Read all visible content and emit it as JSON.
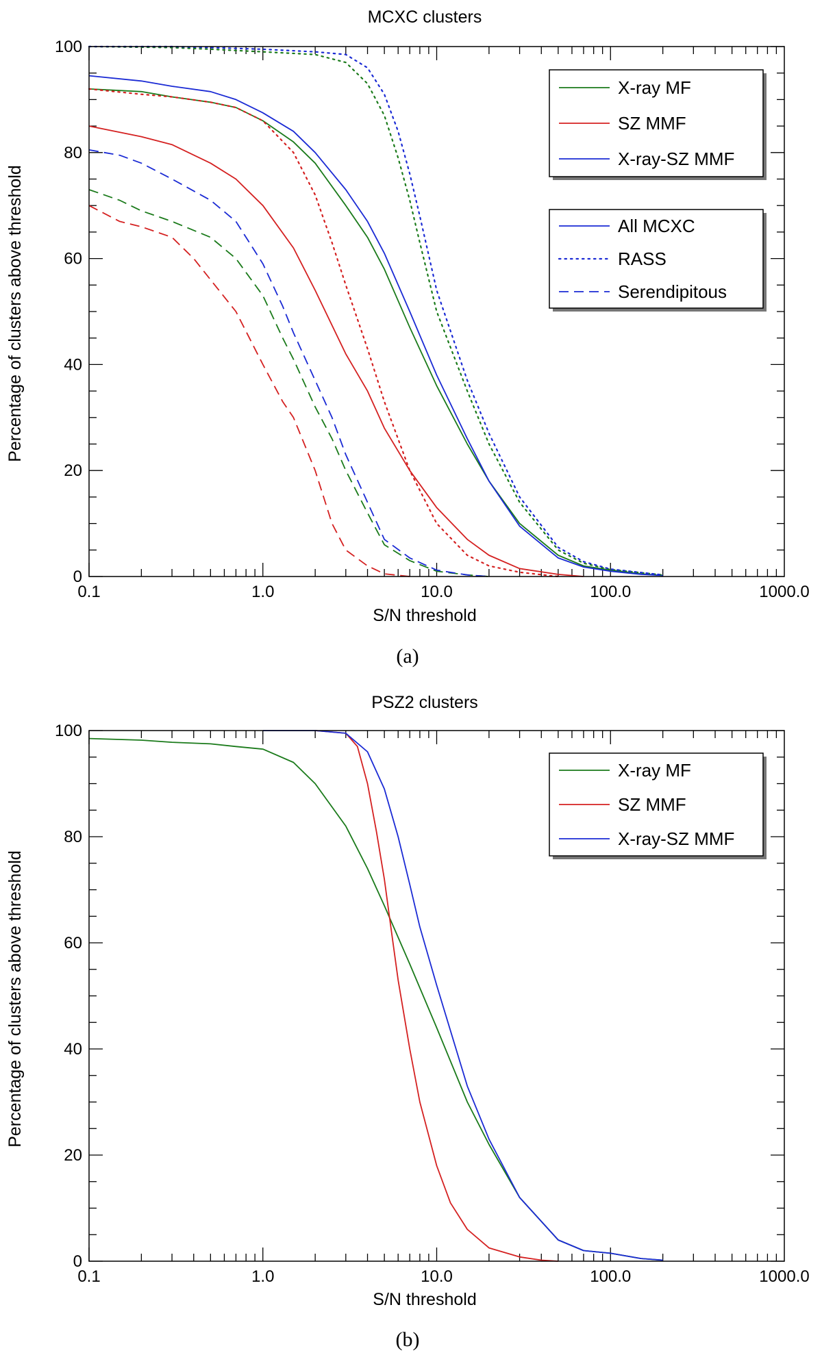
{
  "chart_data": [
    {
      "type": "line",
      "title": "MCXC clusters",
      "caption": "(a)",
      "xlabel": "S/N threshold",
      "ylabel": "Percentage of clusters above threshold",
      "xscale": "log",
      "xlim": [
        0.1,
        1000
      ],
      "ylim": [
        0,
        100
      ],
      "xticks": [
        {
          "v": 0.1,
          "label": "0.1"
        },
        {
          "v": 1,
          "label": "1.0"
        },
        {
          "v": 10,
          "label": "10.0"
        },
        {
          "v": 100,
          "label": "100.0"
        },
        {
          "v": 1000,
          "label": "1000.0"
        }
      ],
      "yticks": [
        0,
        20,
        40,
        60,
        80,
        100
      ],
      "legends": [
        {
          "position": "top-right",
          "entries": [
            {
              "label": "X-ray MF",
              "color": "#1a7a1a",
              "style": "solid"
            },
            {
              "label": "SZ MMF",
              "color": "#d42020",
              "style": "solid"
            },
            {
              "label": "X-ray-SZ MMF",
              "color": "#1a2ad4",
              "style": "solid"
            }
          ]
        },
        {
          "position": "upper-right",
          "entries": [
            {
              "label": "All MCXC",
              "color": "#1a2ad4",
              "style": "solid"
            },
            {
              "label": "RASS",
              "color": "#1a2ad4",
              "style": "dotted"
            },
            {
              "label": "Serendipitous",
              "color": "#1a2ad4",
              "style": "dashed"
            }
          ]
        }
      ],
      "series": [
        {
          "name": "X-ray MF / All MCXC",
          "color": "#1a7a1a",
          "style": "solid",
          "points": [
            [
              0.1,
              92
            ],
            [
              0.2,
              91.5
            ],
            [
              0.3,
              90.5
            ],
            [
              0.5,
              89.5
            ],
            [
              0.7,
              88.5
            ],
            [
              1.0,
              86
            ],
            [
              1.5,
              82
            ],
            [
              2.0,
              78
            ],
            [
              3.0,
              70
            ],
            [
              4.0,
              64
            ],
            [
              5.0,
              58
            ],
            [
              7.0,
              47
            ],
            [
              10.0,
              36
            ],
            [
              15.0,
              25
            ],
            [
              20.0,
              18
            ],
            [
              30.0,
              10
            ],
            [
              50.0,
              4
            ],
            [
              70.0,
              2
            ],
            [
              100.0,
              1.2
            ],
            [
              150.0,
              0.5
            ],
            [
              200.0,
              0.2
            ]
          ]
        },
        {
          "name": "SZ MMF / All MCXC",
          "color": "#d42020",
          "style": "solid",
          "points": [
            [
              0.1,
              85
            ],
            [
              0.2,
              83
            ],
            [
              0.3,
              81.5
            ],
            [
              0.5,
              78
            ],
            [
              0.7,
              75
            ],
            [
              1.0,
              70
            ],
            [
              1.5,
              62
            ],
            [
              2.0,
              54
            ],
            [
              3.0,
              42
            ],
            [
              4.0,
              35
            ],
            [
              5.0,
              28
            ],
            [
              7.0,
              20
            ],
            [
              10.0,
              13
            ],
            [
              15.0,
              7
            ],
            [
              20.0,
              4
            ],
            [
              30.0,
              1.5
            ],
            [
              50.0,
              0.4
            ],
            [
              70.0,
              0
            ]
          ]
        },
        {
          "name": "X-ray-SZ MMF / All MCXC",
          "color": "#1a2ad4",
          "style": "solid",
          "points": [
            [
              0.1,
              94.5
            ],
            [
              0.2,
              93.5
            ],
            [
              0.3,
              92.5
            ],
            [
              0.5,
              91.5
            ],
            [
              0.7,
              90
            ],
            [
              1.0,
              87.5
            ],
            [
              1.5,
              84
            ],
            [
              2.0,
              80
            ],
            [
              3.0,
              73
            ],
            [
              4.0,
              67
            ],
            [
              5.0,
              61
            ],
            [
              7.0,
              50
            ],
            [
              10.0,
              38
            ],
            [
              15.0,
              26
            ],
            [
              20.0,
              18
            ],
            [
              30.0,
              9.5
            ],
            [
              50.0,
              3.5
            ],
            [
              70.0,
              1.8
            ],
            [
              100.0,
              1
            ],
            [
              150.0,
              0.4
            ],
            [
              200.0,
              0.2
            ]
          ]
        },
        {
          "name": "X-ray MF / RASS",
          "color": "#1a7a1a",
          "style": "dotted",
          "points": [
            [
              0.1,
              100
            ],
            [
              0.3,
              99.8
            ],
            [
              0.5,
              99.5
            ],
            [
              1.0,
              99
            ],
            [
              2.0,
              98.5
            ],
            [
              3.0,
              97
            ],
            [
              4.0,
              93
            ],
            [
              5.0,
              87
            ],
            [
              6.0,
              79
            ],
            [
              7.0,
              71
            ],
            [
              8.0,
              63
            ],
            [
              10.0,
              50
            ],
            [
              15.0,
              35
            ],
            [
              20.0,
              25
            ],
            [
              30.0,
              14
            ],
            [
              50.0,
              5
            ],
            [
              70.0,
              2.5
            ],
            [
              100.0,
              1.3
            ],
            [
              200.0,
              0.3
            ]
          ]
        },
        {
          "name": "SZ MMF / RASS",
          "color": "#d42020",
          "style": "dotted",
          "points": [
            [
              0.1,
              92
            ],
            [
              0.2,
              91
            ],
            [
              0.3,
              90.5
            ],
            [
              0.5,
              89.5
            ],
            [
              0.7,
              88.5
            ],
            [
              1.0,
              86
            ],
            [
              1.5,
              80
            ],
            [
              2.0,
              72
            ],
            [
              2.5,
              63
            ],
            [
              3.0,
              55
            ],
            [
              4.0,
              43
            ],
            [
              5.0,
              33
            ],
            [
              7.0,
              20
            ],
            [
              10.0,
              10
            ],
            [
              15.0,
              4
            ],
            [
              20.0,
              2
            ],
            [
              30.0,
              0.8
            ],
            [
              50.0,
              0
            ]
          ]
        },
        {
          "name": "X-ray-SZ MMF / RASS",
          "color": "#1a2ad4",
          "style": "dotted",
          "points": [
            [
              0.1,
              100
            ],
            [
              0.3,
              100
            ],
            [
              0.5,
              99.8
            ],
            [
              1.0,
              99.5
            ],
            [
              2.0,
              99
            ],
            [
              3.0,
              98.5
            ],
            [
              4.0,
              96
            ],
            [
              5.0,
              91
            ],
            [
              6.0,
              84
            ],
            [
              7.0,
              76
            ],
            [
              8.0,
              68
            ],
            [
              10.0,
              54
            ],
            [
              15.0,
              37
            ],
            [
              20.0,
              27
            ],
            [
              30.0,
              15
            ],
            [
              50.0,
              5.5
            ],
            [
              70.0,
              2.8
            ],
            [
              100.0,
              1.4
            ],
            [
              200.0,
              0.3
            ]
          ]
        },
        {
          "name": "X-ray MF / Serendipitous",
          "color": "#1a7a1a",
          "style": "dashed",
          "points": [
            [
              0.1,
              73
            ],
            [
              0.15,
              71
            ],
            [
              0.2,
              69
            ],
            [
              0.3,
              67
            ],
            [
              0.5,
              64
            ],
            [
              0.7,
              60
            ],
            [
              1.0,
              53
            ],
            [
              1.3,
              45
            ],
            [
              1.5,
              41
            ],
            [
              2.0,
              32
            ],
            [
              2.5,
              26
            ],
            [
              3.0,
              20
            ],
            [
              4.0,
              12
            ],
            [
              5.0,
              6
            ],
            [
              7.0,
              3
            ],
            [
              10.0,
              1
            ],
            [
              15.0,
              0.3
            ],
            [
              20.0,
              0
            ]
          ]
        },
        {
          "name": "SZ MMF / Serendipitous",
          "color": "#d42020",
          "style": "dashed",
          "points": [
            [
              0.1,
              70
            ],
            [
              0.15,
              67
            ],
            [
              0.2,
              66
            ],
            [
              0.3,
              64
            ],
            [
              0.4,
              60
            ],
            [
              0.5,
              56
            ],
            [
              0.7,
              50
            ],
            [
              1.0,
              40
            ],
            [
              1.3,
              33
            ],
            [
              1.5,
              30
            ],
            [
              2.0,
              20
            ],
            [
              2.5,
              10
            ],
            [
              3.0,
              5
            ],
            [
              4.0,
              2
            ],
            [
              5.0,
              0.5
            ],
            [
              7.0,
              0
            ]
          ]
        },
        {
          "name": "X-ray-SZ MMF / Serendipitous",
          "color": "#1a2ad4",
          "style": "dashed",
          "points": [
            [
              0.1,
              80.5
            ],
            [
              0.15,
              79.5
            ],
            [
              0.2,
              78
            ],
            [
              0.3,
              75
            ],
            [
              0.5,
              71
            ],
            [
              0.7,
              67
            ],
            [
              1.0,
              59
            ],
            [
              1.3,
              51
            ],
            [
              1.5,
              46
            ],
            [
              2.0,
              37
            ],
            [
              2.5,
              30
            ],
            [
              3.0,
              23
            ],
            [
              4.0,
              14
            ],
            [
              5.0,
              7
            ],
            [
              7.0,
              3.5
            ],
            [
              10.0,
              1.2
            ],
            [
              15.0,
              0.3
            ],
            [
              20.0,
              0
            ]
          ]
        }
      ]
    },
    {
      "type": "line",
      "title": "PSZ2 clusters",
      "caption": "(b)",
      "xlabel": "S/N threshold",
      "ylabel": "Percentage of clusters above threshold",
      "xscale": "log",
      "xlim": [
        0.1,
        1000
      ],
      "ylim": [
        0,
        100
      ],
      "xticks": [
        {
          "v": 0.1,
          "label": "0.1"
        },
        {
          "v": 1,
          "label": "1.0"
        },
        {
          "v": 10,
          "label": "10.0"
        },
        {
          "v": 100,
          "label": "100.0"
        },
        {
          "v": 1000,
          "label": "1000.0"
        }
      ],
      "yticks": [
        0,
        20,
        40,
        60,
        80,
        100
      ],
      "legends": [
        {
          "position": "top-right",
          "entries": [
            {
              "label": "X-ray MF",
              "color": "#1a7a1a",
              "style": "solid"
            },
            {
              "label": "SZ MMF",
              "color": "#d42020",
              "style": "solid"
            },
            {
              "label": "X-ray-SZ MMF",
              "color": "#1a2ad4",
              "style": "solid"
            }
          ]
        }
      ],
      "series": [
        {
          "name": "X-ray MF",
          "color": "#1a7a1a",
          "style": "solid",
          "points": [
            [
              0.1,
              98.5
            ],
            [
              0.2,
              98.2
            ],
            [
              0.3,
              97.8
            ],
            [
              0.5,
              97.5
            ],
            [
              0.7,
              97
            ],
            [
              1.0,
              96.5
            ],
            [
              1.5,
              94
            ],
            [
              2.0,
              90
            ],
            [
              3.0,
              82
            ],
            [
              4.0,
              74
            ],
            [
              5.0,
              67
            ],
            [
              7.0,
              56
            ],
            [
              10.0,
              44
            ],
            [
              15.0,
              30
            ],
            [
              20.0,
              22
            ],
            [
              30.0,
              12
            ],
            [
              50.0,
              4
            ],
            [
              70.0,
              2
            ],
            [
              100.0,
              1.5
            ],
            [
              150.0,
              0.5
            ],
            [
              200.0,
              0.2
            ]
          ]
        },
        {
          "name": "SZ MMF",
          "color": "#d42020",
          "style": "solid",
          "points": [
            [
              2.0,
              100
            ],
            [
              3.0,
              99.5
            ],
            [
              3.5,
              97
            ],
            [
              4.0,
              90
            ],
            [
              4.5,
              81
            ],
            [
              5.0,
              72
            ],
            [
              5.5,
              62
            ],
            [
              6.0,
              53
            ],
            [
              7.0,
              40
            ],
            [
              8.0,
              30
            ],
            [
              10.0,
              18
            ],
            [
              12.0,
              11
            ],
            [
              15.0,
              6
            ],
            [
              20.0,
              2.5
            ],
            [
              30.0,
              0.8
            ],
            [
              40.0,
              0.2
            ],
            [
              50.0,
              0
            ]
          ]
        },
        {
          "name": "X-ray-SZ MMF",
          "color": "#1a2ad4",
          "style": "solid",
          "points": [
            [
              1.0,
              100
            ],
            [
              2.0,
              100
            ],
            [
              3.0,
              99.5
            ],
            [
              4.0,
              96
            ],
            [
              5.0,
              89
            ],
            [
              6.0,
              80
            ],
            [
              7.0,
              71
            ],
            [
              8.0,
              63
            ],
            [
              10.0,
              52
            ],
            [
              15.0,
              33
            ],
            [
              20.0,
              23
            ],
            [
              30.0,
              12
            ],
            [
              50.0,
              4
            ],
            [
              70.0,
              2
            ],
            [
              100.0,
              1.5
            ],
            [
              150.0,
              0.5
            ],
            [
              200.0,
              0.2
            ]
          ]
        }
      ]
    }
  ]
}
